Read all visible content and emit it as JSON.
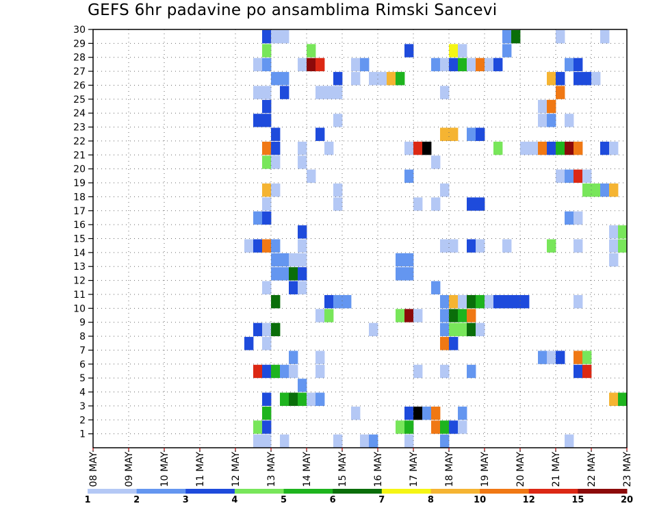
{
  "chart_data": {
    "type": "heatmap",
    "title": "GEFS 6hr padavine po ansamblima Rimski Sancevi",
    "x_ticks": [
      "08 MAY",
      "09 MAY",
      "10 MAY",
      "11 MAY",
      "12 MAY",
      "13 MAY",
      "14 MAY",
      "15 MAY",
      "16 MAY",
      "17 MAY",
      "18 MAY",
      "19 MAY",
      "20 MAY",
      "21 MAY",
      "22 MAY",
      "23 MAY"
    ],
    "y_ticks": [
      1,
      2,
      3,
      4,
      5,
      6,
      7,
      8,
      9,
      10,
      11,
      12,
      13,
      14,
      15,
      16,
      17,
      18,
      19,
      20,
      21,
      22,
      23,
      24,
      25,
      26,
      27,
      28,
      29,
      30
    ],
    "ylim": [
      0,
      30
    ],
    "grid": true,
    "colorbar": {
      "labels": [
        "1",
        "2",
        "3",
        "4",
        "5",
        "6",
        "7",
        "8",
        "10",
        "12",
        "15",
        "20"
      ],
      "colors": [
        "#b4c8f5",
        "#6496f0",
        "#1e4bdc",
        "#78e65a",
        "#1eb41e",
        "#0a6e0a",
        "#f5f514",
        "#f5b432",
        "#f07814",
        "#dc2814",
        "#8c0a0a"
      ]
    },
    "values_by_member": {
      "30": [
        [
          19,
          3
        ],
        [
          20,
          1
        ],
        [
          21,
          1
        ],
        [
          46,
          2
        ],
        [
          47,
          6
        ],
        [
          52,
          1
        ],
        [
          57,
          1
        ]
      ],
      "29": [
        [
          19,
          4
        ],
        [
          24,
          4
        ],
        [
          35,
          3
        ],
        [
          40,
          7
        ],
        [
          41,
          1
        ],
        [
          46,
          2
        ]
      ],
      "28": [
        [
          18,
          1
        ],
        [
          19,
          2
        ],
        [
          23,
          1
        ],
        [
          24,
          11
        ],
        [
          25,
          10
        ],
        [
          29,
          1
        ],
        [
          30,
          2
        ],
        [
          38,
          2
        ],
        [
          39,
          1
        ],
        [
          40,
          3
        ],
        [
          41,
          5
        ],
        [
          42,
          1
        ],
        [
          43,
          9
        ],
        [
          44,
          1
        ],
        [
          45,
          3
        ],
        [
          53,
          2
        ],
        [
          54,
          3
        ]
      ],
      "27": [
        [
          20,
          2
        ],
        [
          21,
          2
        ],
        [
          27,
          3
        ],
        [
          29,
          1
        ],
        [
          31,
          1
        ],
        [
          32,
          1
        ],
        [
          33,
          8
        ],
        [
          34,
          5
        ],
        [
          51,
          8
        ],
        [
          52,
          3
        ],
        [
          54,
          3
        ],
        [
          55,
          3
        ],
        [
          56,
          1
        ]
      ],
      "26": [
        [
          18,
          1
        ],
        [
          19,
          1
        ],
        [
          21,
          3
        ],
        [
          25,
          1
        ],
        [
          26,
          1
        ],
        [
          27,
          1
        ],
        [
          39,
          1
        ],
        [
          52,
          9
        ]
      ],
      "25": [
        [
          19,
          3
        ],
        [
          50,
          1
        ],
        [
          51,
          9
        ]
      ],
      "24": [
        [
          18,
          3
        ],
        [
          19,
          3
        ],
        [
          27,
          1
        ],
        [
          50,
          1
        ],
        [
          51,
          2
        ],
        [
          53,
          1
        ]
      ],
      "23": [
        [
          20,
          3
        ],
        [
          25,
          3
        ],
        [
          39,
          8
        ],
        [
          40,
          8
        ],
        [
          42,
          2
        ],
        [
          43,
          3
        ]
      ],
      "22": [
        [
          19,
          9
        ],
        [
          20,
          3
        ],
        [
          23,
          1
        ],
        [
          26,
          1
        ],
        [
          35,
          1
        ],
        [
          36,
          10
        ],
        [
          37,
          12
        ],
        [
          45,
          4
        ],
        [
          48,
          1
        ],
        [
          49,
          1
        ],
        [
          50,
          9
        ],
        [
          51,
          3
        ],
        [
          52,
          5
        ],
        [
          53,
          11
        ],
        [
          54,
          9
        ],
        [
          57,
          3
        ],
        [
          58,
          1
        ]
      ],
      "21": [
        [
          19,
          4
        ],
        [
          20,
          1
        ],
        [
          23,
          1
        ],
        [
          38,
          1
        ]
      ],
      "20": [
        [
          24,
          1
        ],
        [
          35,
          2
        ],
        [
          52,
          1
        ],
        [
          53,
          2
        ],
        [
          54,
          10
        ],
        [
          55,
          1
        ]
      ],
      "19": [
        [
          19,
          8
        ],
        [
          20,
          1
        ],
        [
          27,
          1
        ],
        [
          39,
          1
        ],
        [
          55,
          4
        ],
        [
          56,
          4
        ],
        [
          57,
          2
        ],
        [
          58,
          8
        ]
      ],
      "18": [
        [
          19,
          1
        ],
        [
          27,
          1
        ],
        [
          36,
          1
        ],
        [
          38,
          1
        ],
        [
          42,
          3
        ],
        [
          43,
          3
        ]
      ],
      "17": [
        [
          18,
          2
        ],
        [
          19,
          3
        ],
        [
          53,
          2
        ],
        [
          54,
          1
        ]
      ],
      "16": [
        [
          23,
          3
        ],
        [
          58,
          1
        ],
        [
          59,
          4
        ]
      ],
      "15": [
        [
          17,
          1
        ],
        [
          18,
          3
        ],
        [
          19,
          9
        ],
        [
          20,
          2
        ],
        [
          23,
          1
        ],
        [
          39,
          1
        ],
        [
          40,
          1
        ],
        [
          42,
          3
        ],
        [
          43,
          1
        ],
        [
          46,
          1
        ],
        [
          51,
          4
        ],
        [
          54,
          1
        ],
        [
          58,
          1
        ],
        [
          59,
          4
        ]
      ],
      "14": [
        [
          20,
          2
        ],
        [
          21,
          2
        ],
        [
          22,
          1
        ],
        [
          23,
          1
        ],
        [
          34,
          2
        ],
        [
          35,
          2
        ],
        [
          58,
          1
        ]
      ],
      "13": [
        [
          20,
          2
        ],
        [
          21,
          2
        ],
        [
          22,
          6
        ],
        [
          23,
          3
        ],
        [
          34,
          2
        ],
        [
          35,
          2
        ]
      ],
      "12": [
        [
          19,
          1
        ],
        [
          22,
          3
        ],
        [
          23,
          1
        ],
        [
          38,
          2
        ]
      ],
      "11": [
        [
          20,
          6
        ],
        [
          26,
          3
        ],
        [
          27,
          2
        ],
        [
          28,
          2
        ],
        [
          39,
          2
        ],
        [
          40,
          8
        ],
        [
          41,
          1
        ],
        [
          42,
          6
        ],
        [
          43,
          5
        ],
        [
          44,
          1
        ],
        [
          45,
          3
        ],
        [
          46,
          3
        ],
        [
          47,
          3
        ],
        [
          48,
          3
        ],
        [
          54,
          1
        ]
      ],
      "10": [
        [
          25,
          1
        ],
        [
          26,
          4
        ],
        [
          34,
          4
        ],
        [
          35,
          11
        ],
        [
          36,
          1
        ],
        [
          39,
          2
        ],
        [
          40,
          6
        ],
        [
          41,
          5
        ],
        [
          42,
          9
        ]
      ],
      "9": [
        [
          18,
          3
        ],
        [
          19,
          1
        ],
        [
          20,
          6
        ],
        [
          31,
          1
        ],
        [
          39,
          2
        ],
        [
          40,
          4
        ],
        [
          41,
          4
        ],
        [
          42,
          6
        ],
        [
          43,
          1
        ]
      ],
      "8": [
        [
          17,
          3
        ],
        [
          19,
          1
        ],
        [
          39,
          9
        ],
        [
          40,
          3
        ]
      ],
      "7": [
        [
          22,
          2
        ],
        [
          25,
          1
        ],
        [
          50,
          2
        ],
        [
          51,
          1
        ],
        [
          52,
          3
        ],
        [
          54,
          9
        ],
        [
          55,
          4
        ]
      ],
      "6": [
        [
          18,
          10
        ],
        [
          19,
          3
        ],
        [
          20,
          5
        ],
        [
          21,
          2
        ],
        [
          22,
          1
        ],
        [
          25,
          1
        ],
        [
          36,
          1
        ],
        [
          39,
          1
        ],
        [
          42,
          2
        ],
        [
          54,
          3
        ],
        [
          55,
          10
        ]
      ],
      "5": [
        [
          23,
          2
        ]
      ],
      "4": [
        [
          19,
          3
        ],
        [
          21,
          5
        ],
        [
          22,
          6
        ],
        [
          23,
          5
        ],
        [
          24,
          1
        ],
        [
          25,
          2
        ],
        [
          58,
          8
        ],
        [
          59,
          5
        ]
      ],
      "3": [
        [
          19,
          5
        ],
        [
          29,
          1
        ],
        [
          35,
          3
        ],
        [
          36,
          12
        ],
        [
          37,
          2
        ],
        [
          38,
          9
        ],
        [
          41,
          2
        ]
      ],
      "2": [
        [
          18,
          4
        ],
        [
          19,
          3
        ],
        [
          34,
          4
        ],
        [
          35,
          5
        ],
        [
          38,
          9
        ],
        [
          39,
          5
        ],
        [
          40,
          3
        ],
        [
          41,
          1
        ]
      ],
      "1": [
        [
          18,
          1
        ],
        [
          19,
          1
        ],
        [
          21,
          1
        ],
        [
          27,
          1
        ],
        [
          30,
          1
        ],
        [
          31,
          2
        ],
        [
          35,
          1
        ],
        [
          39,
          2
        ],
        [
          53,
          1
        ]
      ]
    }
  }
}
